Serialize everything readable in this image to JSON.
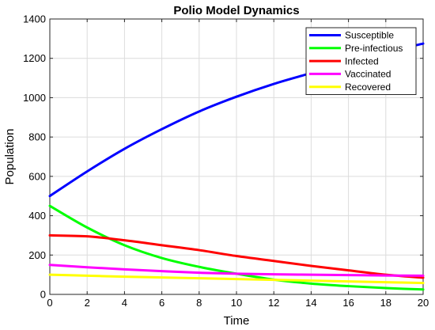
{
  "chart_data": {
    "type": "line",
    "title": "Polio Model Dynamics",
    "xlabel": "Time",
    "ylabel": "Population",
    "xlim": [
      0,
      20
    ],
    "ylim": [
      0,
      1400
    ],
    "xticks": [
      0,
      2,
      4,
      6,
      8,
      10,
      12,
      14,
      16,
      18,
      20
    ],
    "yticks": [
      0,
      200,
      400,
      600,
      800,
      1000,
      1200,
      1400
    ],
    "grid": true,
    "legend_position": "top-right",
    "x": [
      0,
      2,
      4,
      6,
      8,
      10,
      12,
      14,
      16,
      18,
      20
    ],
    "series": [
      {
        "name": "Susceptible",
        "color": "#0000ff",
        "values": [
          500,
          625,
          740,
          840,
          930,
          1005,
          1070,
          1125,
          1180,
          1230,
          1275
        ]
      },
      {
        "name": "Pre-infectious",
        "color": "#00ff00",
        "values": [
          450,
          340,
          250,
          185,
          140,
          105,
          75,
          55,
          42,
          32,
          25
        ]
      },
      {
        "name": "Infected",
        "color": "#ff0000",
        "values": [
          300,
          295,
          275,
          250,
          225,
          195,
          170,
          145,
          122,
          100,
          85
        ]
      },
      {
        "name": "Vaccinated",
        "color": "#ff00ff",
        "values": [
          150,
          138,
          127,
          118,
          110,
          105,
          102,
          100,
          98,
          96,
          95
        ]
      },
      {
        "name": "Recovered",
        "color": "#ffff00",
        "values": [
          100,
          95,
          90,
          86,
          82,
          78,
          74,
          70,
          66,
          62,
          58
        ]
      }
    ]
  }
}
